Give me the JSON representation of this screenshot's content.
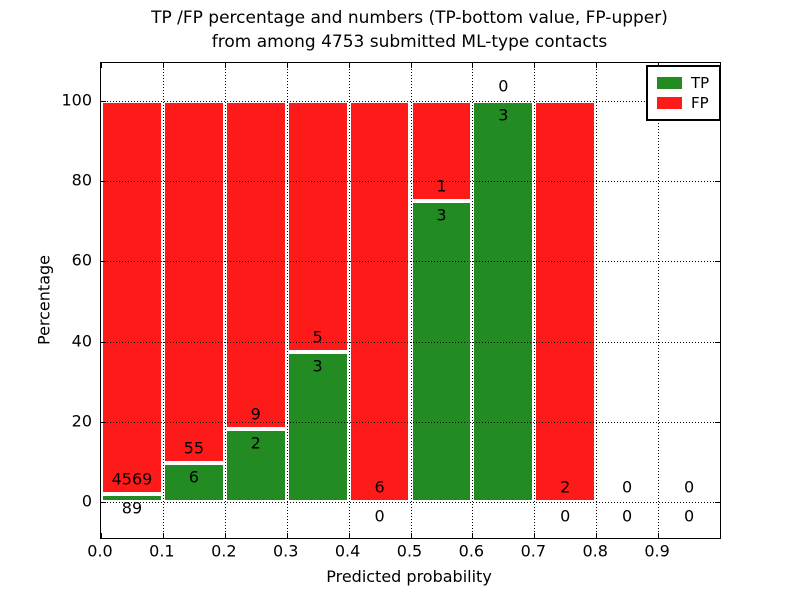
{
  "title": {
    "line1": "TP /FP percentage and numbers (TP-bottom value, FP-upper)",
    "line2": "from among 4753 submitted ML-type contacts"
  },
  "axes": {
    "xlabel": "Predicted probability",
    "ylabel": "Percentage",
    "xtick_labels": [
      "0.0",
      "0.1",
      "0.2",
      "0.3",
      "0.4",
      "0.5",
      "0.6",
      "0.7",
      "0.8",
      "0.9"
    ],
    "xtick_values": [
      0.0,
      0.1,
      0.2,
      0.3,
      0.4,
      0.5,
      0.6,
      0.7,
      0.8,
      0.9
    ],
    "ytick_labels": [
      "0",
      "20",
      "40",
      "60",
      "80",
      "100"
    ],
    "ytick_values": [
      0,
      20,
      40,
      60,
      80,
      100
    ],
    "xlim": [
      0.0,
      1.0
    ]
  },
  "legend": {
    "position": "upper right",
    "items": [
      {
        "label": "TP",
        "color": "#228b22"
      },
      {
        "label": "FP",
        "color": "#ff1a1a"
      }
    ]
  },
  "chart_data": {
    "type": "bar",
    "stacked": true,
    "normalized_to_percent": true,
    "title": "TP /FP percentage and numbers (TP-bottom value, FP-upper) from among 4753 submitted ML-type contacts",
    "xlabel": "Predicted probability",
    "ylabel": "Percentage",
    "bin_edges": [
      0.0,
      0.1,
      0.2,
      0.3,
      0.4,
      0.5,
      0.6,
      0.7,
      0.8,
      0.9,
      1.0
    ],
    "series": [
      {
        "name": "TP",
        "color": "#228b22",
        "counts": [
          89,
          6,
          2,
          3,
          0,
          3,
          3,
          0,
          0,
          0
        ]
      },
      {
        "name": "FP",
        "color": "#ff1a1a",
        "counts": [
          4569,
          55,
          9,
          5,
          6,
          1,
          0,
          2,
          0,
          0
        ]
      }
    ],
    "tp_percent_of_bin": [
      1.91,
      9.84,
      18.18,
      37.5,
      0.0,
      75.0,
      100.0,
      0.0,
      null,
      null
    ],
    "bar_total_height_percent": 100,
    "total_contacts": 4753,
    "ylim": [
      0,
      100
    ],
    "grid": "dotted black, drawn over bars",
    "bar_edge_color": "#ffffff",
    "legend_position": "upper right"
  }
}
